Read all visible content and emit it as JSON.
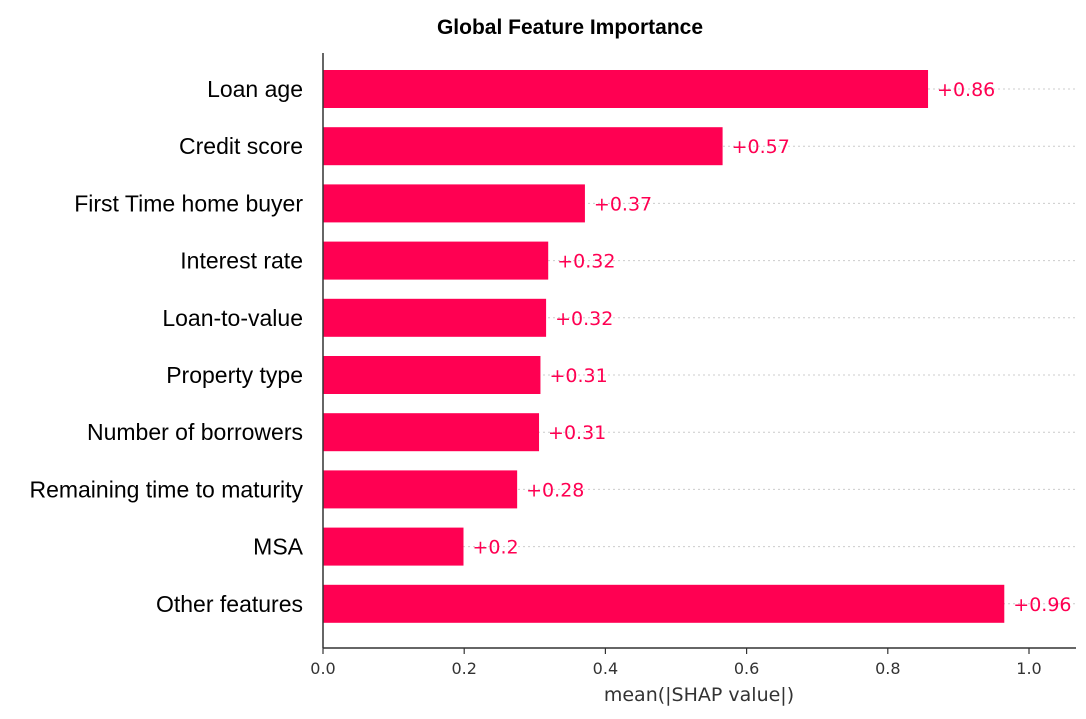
{
  "chart_data": {
    "type": "bar",
    "orientation": "horizontal",
    "title": "Global Feature Importance",
    "xlabel": "mean(|SHAP value|)",
    "ylabel": "",
    "xlim": [
      0,
      1.06
    ],
    "x_ticks": [
      0.0,
      0.2,
      0.4,
      0.6,
      0.8,
      1.0
    ],
    "x_tick_labels": [
      "0.0",
      "0.2",
      "0.4",
      "0.6",
      "0.8",
      "1.0"
    ],
    "categories": [
      "Loan age",
      "Credit score",
      "First Time home buyer",
      "Interest rate",
      "Loan-to-value",
      "Property type",
      "Number of borrowers",
      "Remaining time to maturity",
      "MSA",
      "Other features"
    ],
    "values": [
      0.857,
      0.566,
      0.371,
      0.319,
      0.316,
      0.308,
      0.306,
      0.275,
      0.199,
      0.965
    ],
    "value_labels": [
      "+0.86",
      "+0.57",
      "+0.37",
      "+0.32",
      "+0.32",
      "+0.31",
      "+0.31",
      "+0.28",
      "+0.2",
      "+0.96"
    ],
    "grid": "dotted horizontal guide lines behind bars",
    "legend": "none",
    "colors": {
      "bar": "#ff0052",
      "value_text": "#ff0052",
      "axis": "#333333",
      "grid": "#cccccc"
    }
  }
}
